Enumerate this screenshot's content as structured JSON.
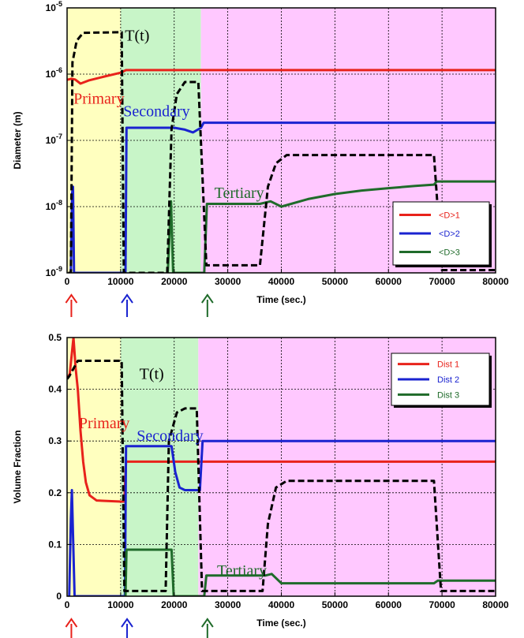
{
  "colors": {
    "primary": "#e8221b",
    "secondary": "#1a23d0",
    "tertiary": "#1f6b2a",
    "temperature": "#000000",
    "zone_primary": "#ffffbf",
    "zone_secondary": "#c8f5c8",
    "zone_tertiary": "#ffc8ff"
  },
  "chart_data": [
    {
      "type": "line",
      "xlabel": "Time (sec.)",
      "ylabel": "Diameter (m)",
      "xlim": [
        0,
        80000
      ],
      "yscale": "log",
      "ylim": [
        1e-09,
        1e-05
      ],
      "x_ticks": [
        "0",
        "10000",
        "20000",
        "30000",
        "40000",
        "50000",
        "60000",
        "70000",
        "80000"
      ],
      "y_ticks": [
        {
          "base": "10",
          "exp": "-9"
        },
        {
          "base": "10",
          "exp": "-8"
        },
        {
          "base": "10",
          "exp": "-7"
        },
        {
          "base": "10",
          "exp": "-6"
        },
        {
          "base": "10",
          "exp": "-5"
        }
      ],
      "grid": true,
      "legend_position": "lower-right",
      "zones": [
        {
          "x0": 0,
          "x1": 10000,
          "color": "zone_primary"
        },
        {
          "x0": 10000,
          "x1": 25000,
          "color": "zone_secondary"
        },
        {
          "x0": 25000,
          "x1": 80000,
          "color": "zone_tertiary"
        }
      ],
      "arrows": [
        {
          "x": 800,
          "color": "primary"
        },
        {
          "x": 11200,
          "color": "secondary"
        },
        {
          "x": 26200,
          "color": "tertiary"
        }
      ],
      "annotations": [
        {
          "text": "T(t)",
          "x": 10800,
          "y": 3.2e-06,
          "color": "temperature"
        },
        {
          "text": "Primary",
          "x": 1200,
          "y": 3.6e-07,
          "color": "primary"
        },
        {
          "text": "Secondary",
          "x": 10500,
          "y": 2.3e-07,
          "color": "secondary"
        },
        {
          "text": "Tertiary",
          "x": 27500,
          "y": 1.35e-08,
          "color": "tertiary"
        }
      ],
      "series": [
        {
          "name": "<D>1",
          "color": "primary",
          "style": "solid",
          "points": [
            [
              0,
              8.2e-07
            ],
            [
              800,
              8.5e-07
            ],
            [
              1500,
              8.3e-07
            ],
            [
              2500,
              7.2e-07
            ],
            [
              4000,
              8e-07
            ],
            [
              7000,
              9.2e-07
            ],
            [
              10000,
              1.05e-06
            ],
            [
              11000,
              1.15e-06
            ],
            [
              80000,
              1.15e-06
            ]
          ]
        },
        {
          "name": "<D>2",
          "color": "secondary",
          "style": "solid",
          "points": [
            [
              700,
              1e-09
            ],
            [
              950,
              1.6e-08
            ],
            [
              1100,
              2e-08
            ],
            [
              1300,
              1e-09
            ],
            [
              10900,
              1e-09
            ],
            [
              11100,
              1.55e-07
            ],
            [
              20000,
              1.55e-07
            ],
            [
              22000,
              1.45e-07
            ],
            [
              23500,
              1.32e-07
            ],
            [
              25000,
              1.55e-07
            ],
            [
              25500,
              1.85e-07
            ],
            [
              80000,
              1.85e-07
            ]
          ]
        },
        {
          "name": "<D>3",
          "color": "tertiary",
          "style": "solid",
          "points": [
            [
              18800,
              1e-09
            ],
            [
              19400,
              1.2e-08
            ],
            [
              19800,
              1e-09
            ],
            [
              25600,
              1e-09
            ],
            [
              26100,
              1.1e-08
            ],
            [
              30000,
              1.1e-08
            ],
            [
              36000,
              1.1e-08
            ],
            [
              38000,
              1.2e-08
            ],
            [
              40000,
              1e-08
            ],
            [
              45000,
              1.3e-08
            ],
            [
              50000,
              1.55e-08
            ],
            [
              55000,
              1.75e-08
            ],
            [
              60000,
              1.9e-08
            ],
            [
              65000,
              2.05e-08
            ],
            [
              68500,
              2.15e-08
            ],
            [
              69000,
              2.4e-08
            ],
            [
              80000,
              2.4e-08
            ]
          ]
        },
        {
          "color": "temperature",
          "style": "dashed",
          "points": [
            [
              200,
              1e-09
            ],
            [
              700,
              1e-09
            ],
            [
              1000,
              1.5e-06
            ],
            [
              1800,
              3.2e-06
            ],
            [
              3000,
              4.2e-06
            ],
            [
              10200,
              4.3e-06
            ],
            [
              10600,
              1e-09
            ],
            [
              18700,
              1e-09
            ],
            [
              19500,
              1.5e-07
            ],
            [
              20500,
              5e-07
            ],
            [
              22000,
              7.6e-07
            ],
            [
              24500,
              7.6e-07
            ],
            [
              26000,
              1.3e-09
            ],
            [
              36000,
              1.3e-09
            ],
            [
              37500,
              2e-08
            ],
            [
              39000,
              4.5e-08
            ],
            [
              41000,
              6e-08
            ],
            [
              68500,
              6e-08
            ],
            [
              70000,
              1.1e-09
            ],
            [
              80000,
              1.1e-09
            ]
          ]
        }
      ]
    },
    {
      "type": "line",
      "xlabel": "Time (sec.)",
      "ylabel": "Volume Fraction",
      "xlim": [
        0,
        80000
      ],
      "ylim": [
        0,
        0.5
      ],
      "x_ticks": [
        "0",
        "10000",
        "20000",
        "30000",
        "40000",
        "50000",
        "60000",
        "70000",
        "80000"
      ],
      "y_ticks": [
        "0",
        "0.1",
        "0.2",
        "0.3",
        "0.4",
        "0.5"
      ],
      "grid": true,
      "legend_position": "top-right",
      "zones": [
        {
          "x0": 0,
          "x1": 10000,
          "color": "zone_primary"
        },
        {
          "x0": 10000,
          "x1": 24500,
          "color": "zone_secondary"
        },
        {
          "x0": 24500,
          "x1": 80000,
          "color": "zone_tertiary"
        }
      ],
      "arrows": [
        {
          "x": 800,
          "color": "primary"
        },
        {
          "x": 11200,
          "color": "secondary"
        },
        {
          "x": 26200,
          "color": "tertiary"
        }
      ],
      "annotations": [
        {
          "text": "T(t)",
          "x": 13500,
          "y": 0.42,
          "color": "temperature"
        },
        {
          "text": "Primary",
          "x": 2200,
          "y": 0.325,
          "color": "primary"
        },
        {
          "text": "Secondary",
          "x": 13000,
          "y": 0.3,
          "color": "secondary"
        },
        {
          "text": "Tertiary",
          "x": 28000,
          "y": 0.04,
          "color": "tertiary"
        }
      ],
      "series": [
        {
          "name": "Dist 1",
          "color": "primary",
          "style": "solid",
          "points": [
            [
              0,
              0.42
            ],
            [
              500,
              0.43
            ],
            [
              900,
              0.47
            ],
            [
              1200,
              0.5
            ],
            [
              1600,
              0.44
            ],
            [
              2000,
              0.4
            ],
            [
              2500,
              0.32
            ],
            [
              3000,
              0.26
            ],
            [
              3500,
              0.22
            ],
            [
              4200,
              0.195
            ],
            [
              5500,
              0.185
            ],
            [
              10000,
              0.183
            ],
            [
              10700,
              0.183
            ],
            [
              11000,
              0.26
            ],
            [
              80000,
              0.26
            ]
          ]
        },
        {
          "name": "Dist 2",
          "color": "secondary",
          "style": "solid",
          "points": [
            [
              400,
              0
            ],
            [
              700,
              0.15
            ],
            [
              900,
              0.205
            ],
            [
              1100,
              0.12
            ],
            [
              1400,
              0
            ],
            [
              10800,
              0
            ],
            [
              11000,
              0.29
            ],
            [
              19500,
              0.29
            ],
            [
              20200,
              0.24
            ],
            [
              21000,
              0.21
            ],
            [
              22000,
              0.205
            ],
            [
              24800,
              0.205
            ],
            [
              25300,
              0.3
            ],
            [
              80000,
              0.3
            ]
          ]
        },
        {
          "name": "Dist 3",
          "color": "tertiary",
          "style": "solid",
          "points": [
            [
              10900,
              0
            ],
            [
              11100,
              0.09
            ],
            [
              19500,
              0.09
            ],
            [
              19900,
              0
            ],
            [
              25600,
              0
            ],
            [
              26000,
              0.04
            ],
            [
              37000,
              0.04
            ],
            [
              38200,
              0.043
            ],
            [
              40000,
              0.025
            ],
            [
              50000,
              0.025
            ],
            [
              68500,
              0.025
            ],
            [
              69200,
              0.03
            ],
            [
              80000,
              0.03
            ]
          ]
        },
        {
          "color": "temperature",
          "style": "dashed",
          "points": [
            [
              0,
              0.42
            ],
            [
              400,
              0.425
            ],
            [
              1200,
              0.44
            ],
            [
              2000,
              0.455
            ],
            [
              10200,
              0.455
            ],
            [
              10700,
              0.01
            ],
            [
              18400,
              0.01
            ],
            [
              19000,
              0.3
            ],
            [
              20500,
              0.355
            ],
            [
              22000,
              0.363
            ],
            [
              24200,
              0.363
            ],
            [
              25200,
              0.01
            ],
            [
              36500,
              0.01
            ],
            [
              37500,
              0.14
            ],
            [
              39000,
              0.21
            ],
            [
              41000,
              0.223
            ],
            [
              68500,
              0.223
            ],
            [
              69800,
              0.01
            ],
            [
              80000,
              0.01
            ]
          ]
        }
      ]
    }
  ]
}
